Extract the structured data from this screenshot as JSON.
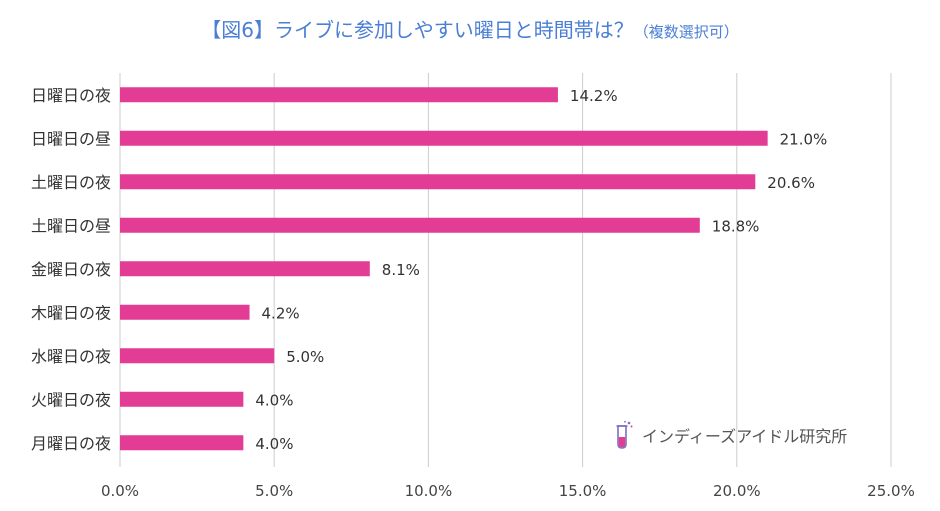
{
  "chart_data": {
    "type": "bar",
    "orientation": "horizontal",
    "title": "【図6】ライブに参加しやすい曜日と時間帯は？",
    "subtitle": "（複数選択可）",
    "categories": [
      "日曜日の夜",
      "日曜日の昼",
      "土曜日の夜",
      "土曜日の昼",
      "金曜日の夜",
      "木曜日の夜",
      "水曜日の夜",
      "火曜日の夜",
      "月曜日の夜"
    ],
    "values": [
      14.2,
      21.0,
      20.6,
      18.8,
      8.1,
      4.2,
      5.0,
      4.0,
      4.0
    ],
    "value_labels": [
      "14.2%",
      "21.0%",
      "20.6%",
      "18.8%",
      "8.1%",
      "4.2%",
      "5.0%",
      "4.0%",
      "4.0%"
    ],
    "xlim": [
      0,
      25
    ],
    "xticks": [
      0,
      5,
      10,
      15,
      20,
      25
    ],
    "xtick_labels": [
      "0.0%",
      "5.0%",
      "10.0%",
      "15.0%",
      "20.0%",
      "25.0%"
    ],
    "grid": true,
    "bar_color": "#e23c95",
    "grid_color": "#cccccc",
    "title_color": "#4a7fd4"
  },
  "watermark": {
    "text": "インディーズアイドル研究所",
    "icon": "test-tube-icon"
  }
}
